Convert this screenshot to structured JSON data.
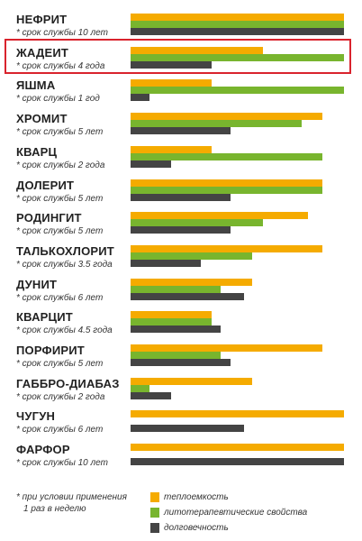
{
  "colors": {
    "heat": "#f5ab00",
    "therapy": "#78b52e",
    "durability": "#444444",
    "highlight": "#d9232d"
  },
  "chart_data": {
    "type": "bar",
    "orientation": "horizontal",
    "series": [
      {
        "name": "теплоемкость",
        "values": [
          10,
          6.2,
          3.8,
          9.0,
          3.8,
          9.0,
          8.3,
          9.0,
          5.7,
          3.8,
          9.0,
          5.7,
          10,
          10
        ]
      },
      {
        "name": "литотерапевтические свойства",
        "values": [
          10,
          10,
          10,
          8.0,
          9.0,
          9.0,
          6.2,
          5.7,
          4.2,
          3.8,
          4.2,
          0.9,
          0,
          0
        ]
      },
      {
        "name": "долговечность",
        "values": [
          10,
          3.8,
          0.9,
          4.7,
          1.9,
          4.7,
          4.7,
          3.3,
          5.3,
          4.2,
          4.7,
          1.9,
          5.3,
          10
        ]
      }
    ],
    "categories": [
      {
        "name": "НЕФРИТ",
        "life": "* срок службы 10 лет"
      },
      {
        "name": "ЖАДЕИТ",
        "life": "* срок службы 4 года"
      },
      {
        "name": "ЯШМА",
        "life": "* срок службы 1 год"
      },
      {
        "name": "ХРОМИТ",
        "life": "* срок службы  5 лет"
      },
      {
        "name": "КВАРЦ",
        "life": "* срок службы  2 года"
      },
      {
        "name": "ДОЛЕРИТ",
        "life": "* срок службы 5 лет"
      },
      {
        "name": "РОДИНГИТ",
        "life": "* срок службы 5 лет"
      },
      {
        "name": "ТАЛЬКОХЛОРИТ",
        "life": "* срок службы  3.5 года"
      },
      {
        "name": "ДУНИТ",
        "life": "* срок службы 6 лет"
      },
      {
        "name": "КВАРЦИТ",
        "life": "* срок службы 4.5 года"
      },
      {
        "name": "ПОРФИРИТ",
        "life": "* срок службы 5 лет"
      },
      {
        "name": "ГАББРО-ДИАБАЗ",
        "life": "* срок службы  2 года"
      },
      {
        "name": "ЧУГУН",
        "life": "* срок службы  6 лет"
      },
      {
        "name": "ФАРФОР",
        "life": "* срок службы 10 лет"
      }
    ],
    "highlighted_category": "ЖАДЕИТ",
    "xlim": [
      0,
      10
    ]
  },
  "footnote": {
    "line1": "* при условии применения",
    "line2": "1 раз в неделю"
  },
  "legend": [
    {
      "label": "теплоемкость"
    },
    {
      "label": "литотерапевтические свойства"
    },
    {
      "label": "долговечность"
    }
  ]
}
